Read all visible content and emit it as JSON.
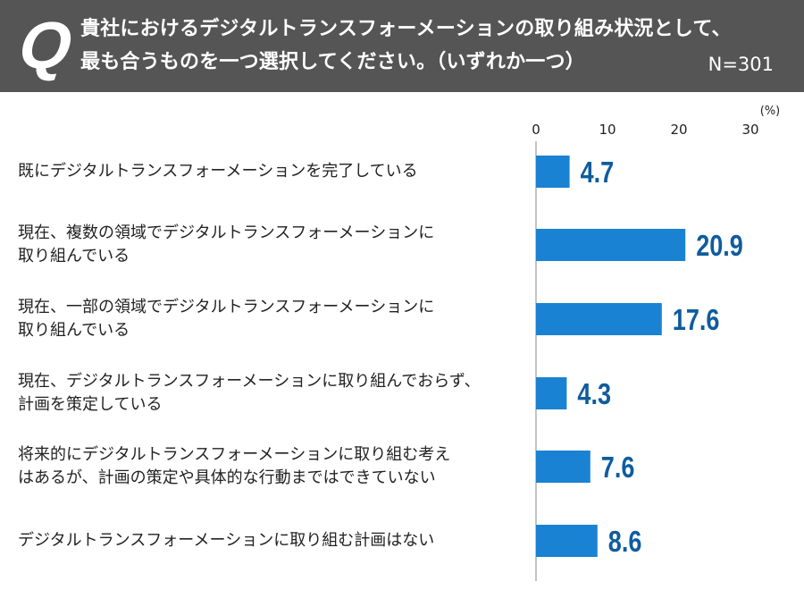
{
  "question": {
    "mark": "Q",
    "line1": "貴社におけるデジタルトランスフォーメーションの取り組み状況として、",
    "line2": "最も合うものを一つ選択してください。（いずれか一つ）",
    "sample_size": "N=301"
  },
  "colors": {
    "header_bg": "#555555",
    "bar": "#1a82d2",
    "value_text": "#0f5c9e",
    "axis": "#888888"
  },
  "chart_data": {
    "type": "bar",
    "orientation": "horizontal",
    "title": "貴社におけるデジタルトランスフォーメーションの取り組み状況として、最も合うものを一つ選択してください。（いずれか一つ）",
    "unit_label": "(%)",
    "xlim": [
      0,
      30
    ],
    "ticks": [
      "0",
      "10",
      "20",
      "30"
    ],
    "categories": [
      [
        "既にデジタルトランスフォーメーションを完了している"
      ],
      [
        "現在、複数の領域でデジタルトランスフォーメーションに",
        "取り組んでいる"
      ],
      [
        "現在、一部の領域でデジタルトランスフォーメーションに",
        "取り組んでいる"
      ],
      [
        "現在、デジタルトランスフォーメーションに取り組んでおらず、",
        "計画を策定している"
      ],
      [
        "将来的にデジタルトランスフォーメーションに取り組む考え",
        "はあるが、計画の策定や具体的な行動まではできていない"
      ],
      [
        "デジタルトランスフォーメーションに取り組む計画はない"
      ]
    ],
    "values": [
      4.7,
      20.9,
      17.6,
      4.3,
      7.6,
      8.6
    ],
    "value_labels": [
      "4.7",
      "20.9",
      "17.6",
      "4.3",
      "7.6",
      "8.6"
    ]
  }
}
